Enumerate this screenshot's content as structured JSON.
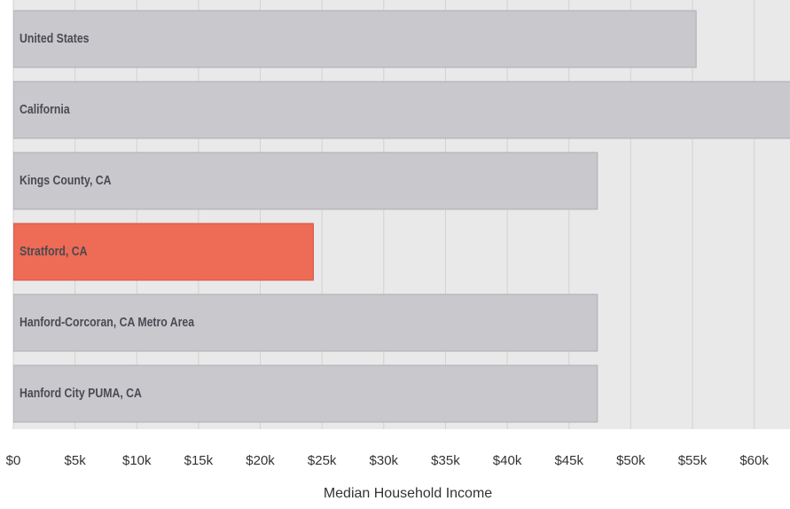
{
  "chart_data": {
    "type": "hbar",
    "categories": [
      "United States",
      "California",
      "Kings County, CA",
      "Stratford, CA",
      "Hanford-Corcoran, CA Metro Area",
      "Hanford City PUMA, CA"
    ],
    "values": [
      55300,
      64500,
      47300,
      24300,
      47300,
      47300
    ],
    "colors": [
      "#c9c8cd",
      "#c9c8cd",
      "#c9c8cd",
      "#ee6b55",
      "#c9c8cd",
      "#c9c8cd"
    ],
    "xlabel": "Median Household Income",
    "xlim": [
      0,
      62900
    ],
    "xticks": [
      {
        "value": 0,
        "label": "$0"
      },
      {
        "value": 5000,
        "label": "$5k"
      },
      {
        "value": 10000,
        "label": "$10k"
      },
      {
        "value": 15000,
        "label": "$15k"
      },
      {
        "value": 20000,
        "label": "$20k"
      },
      {
        "value": 25000,
        "label": "$25k"
      },
      {
        "value": 30000,
        "label": "$30k"
      },
      {
        "value": 35000,
        "label": "$35k"
      },
      {
        "value": 40000,
        "label": "$40k"
      },
      {
        "value": 45000,
        "label": "$45k"
      },
      {
        "value": 50000,
        "label": "$50k"
      },
      {
        "value": 55000,
        "label": "$55k"
      },
      {
        "value": 60000,
        "label": "$60k"
      }
    ],
    "grid": true
  }
}
